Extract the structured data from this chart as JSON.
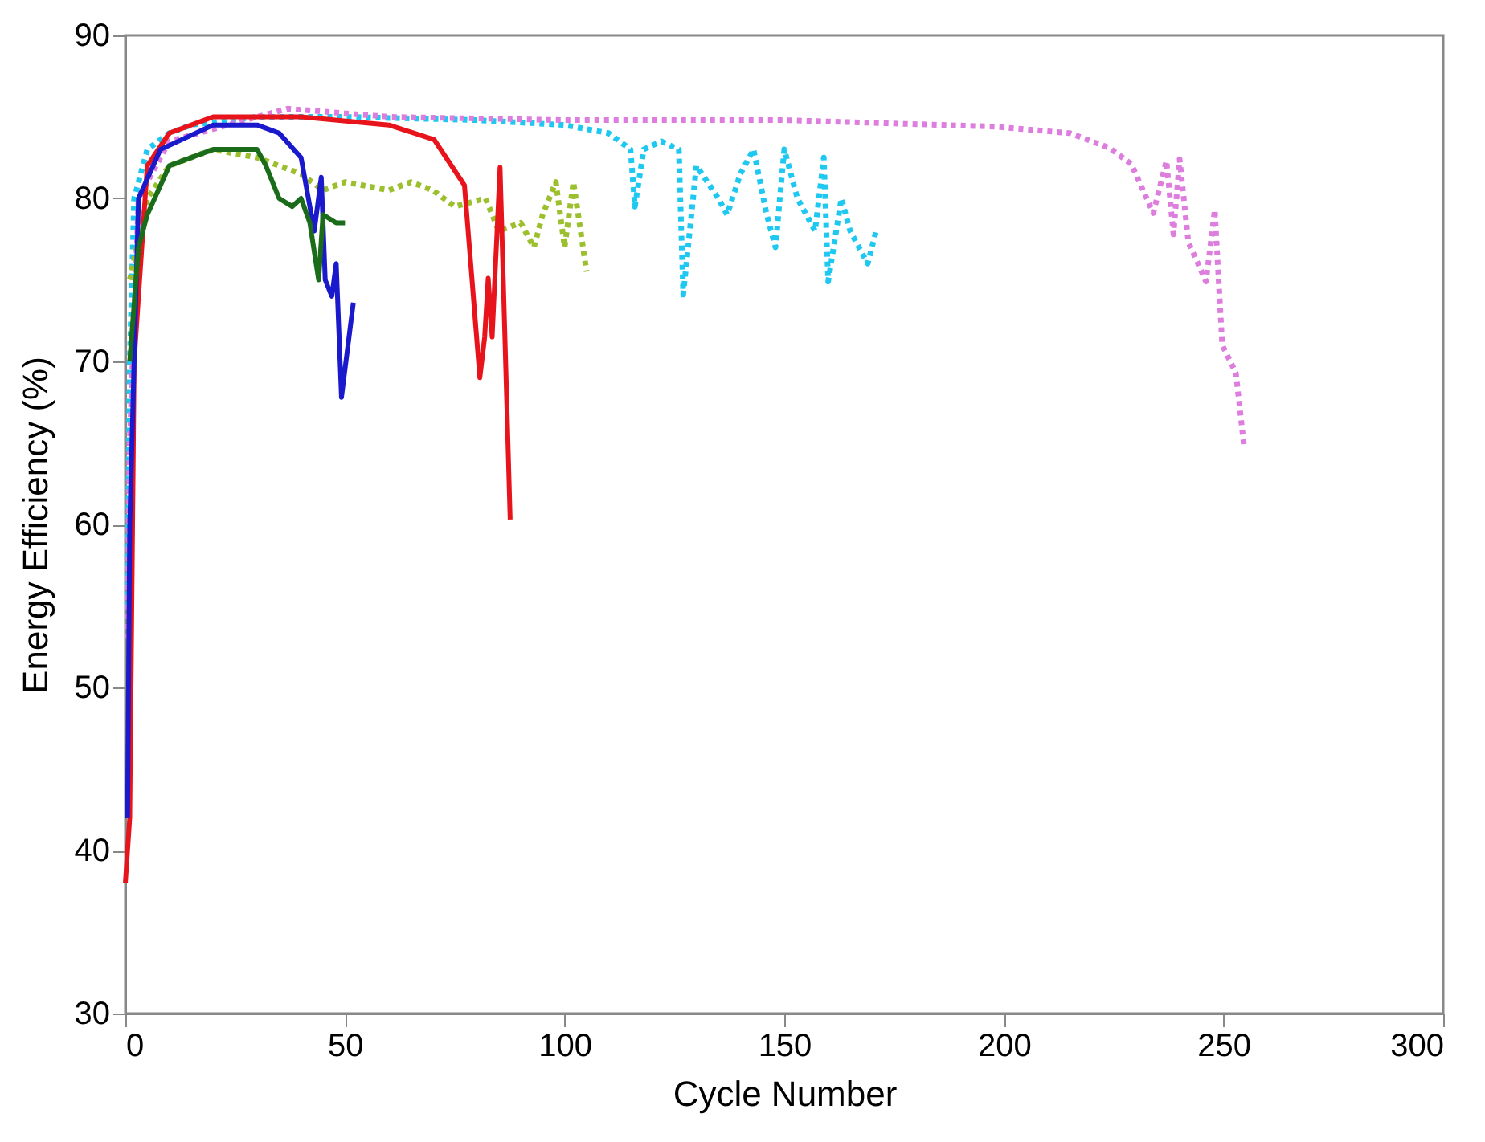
{
  "chart_data": {
    "type": "line",
    "xlabel": "Cycle Number",
    "ylabel": "Energy Efficiency (%)",
    "xlim": [
      0,
      300
    ],
    "xticks": [
      0,
      50,
      100,
      150,
      200,
      250,
      300
    ],
    "ylim": [
      30,
      90
    ],
    "yticks": [
      30,
      40,
      50,
      60,
      70,
      80,
      90
    ],
    "grid": false,
    "series": [
      {
        "color": "#1ec8f0",
        "line_style": "dotted",
        "x": [
          0.5,
          1,
          2,
          5,
          10,
          15,
          30,
          50,
          80,
          100,
          110,
          115,
          116,
          118,
          122,
          126,
          127,
          130,
          135,
          137,
          140,
          143,
          146,
          148,
          150,
          153,
          157,
          159,
          160,
          163,
          165,
          167,
          169,
          171
        ],
        "values": [
          55,
          70,
          80,
          83,
          84,
          84.5,
          85,
          85,
          84.8,
          84.5,
          84,
          83,
          79.5,
          83,
          83.5,
          83,
          74.1,
          82,
          80,
          79,
          81.5,
          83,
          79,
          77,
          83,
          80,
          78,
          82.5,
          74.9,
          80,
          78,
          77,
          76,
          78.1
        ]
      },
      {
        "color": "#dd7ddd",
        "line_style": "dotted",
        "x": [
          0.5,
          1,
          3,
          10,
          30,
          37,
          60,
          100,
          150,
          198,
          215,
          224,
          229,
          234,
          237,
          238.6,
          240,
          242,
          246,
          248,
          249.7,
          252.8,
          254.7
        ],
        "values": [
          53,
          65,
          80,
          83.5,
          85,
          85.5,
          85,
          84.8,
          84.8,
          84.4,
          84,
          83.1,
          82.1,
          79.1,
          82.3,
          77.8,
          82.4,
          77.3,
          74.9,
          79.3,
          71,
          69.3,
          64.7
        ]
      },
      {
        "color": "#9cbf2e",
        "line_style": "dotted",
        "x": [
          1,
          5,
          10,
          20,
          30,
          40,
          45,
          50,
          60,
          65,
          70,
          75,
          82,
          85,
          90,
          93,
          95,
          98,
          100,
          102,
          105
        ],
        "values": [
          75,
          80,
          82,
          83,
          82.5,
          81.5,
          80.5,
          81,
          80.5,
          81,
          80.5,
          79.5,
          80,
          78,
          78.5,
          77,
          79,
          81,
          77,
          81,
          75.5
        ]
      },
      {
        "color": "#e8141c",
        "line_style": "solid",
        "x": [
          0,
          1,
          2,
          5,
          10,
          20,
          40,
          60,
          70.3,
          77.2,
          80.7,
          81.8,
          82.6,
          83.5,
          85.3,
          87.6
        ],
        "values": [
          38,
          42,
          70,
          82,
          84,
          85,
          85,
          84.5,
          83.6,
          80.8,
          69,
          71.5,
          75.1,
          71.5,
          81.9,
          60.3
        ]
      },
      {
        "color": "#1a1acc",
        "line_style": "solid",
        "x": [
          0.5,
          1,
          3,
          8,
          20,
          30,
          35,
          40,
          43,
          44.6,
          45.5,
          47,
          48,
          49.2,
          51.9
        ],
        "values": [
          42,
          60,
          80,
          83,
          84.5,
          84.5,
          84,
          82.5,
          78,
          81.3,
          75,
          74,
          76,
          67.8,
          73.6
        ]
      },
      {
        "color": "#1a6b1a",
        "line_style": "solid",
        "x": [
          1,
          3,
          5,
          10,
          20,
          30,
          32,
          35,
          38,
          40,
          42,
          44,
          45,
          48,
          50
        ],
        "values": [
          70,
          77,
          79,
          82,
          83,
          83,
          82,
          80,
          79.5,
          80,
          78.5,
          75,
          79,
          78.5,
          78.5
        ]
      }
    ]
  }
}
